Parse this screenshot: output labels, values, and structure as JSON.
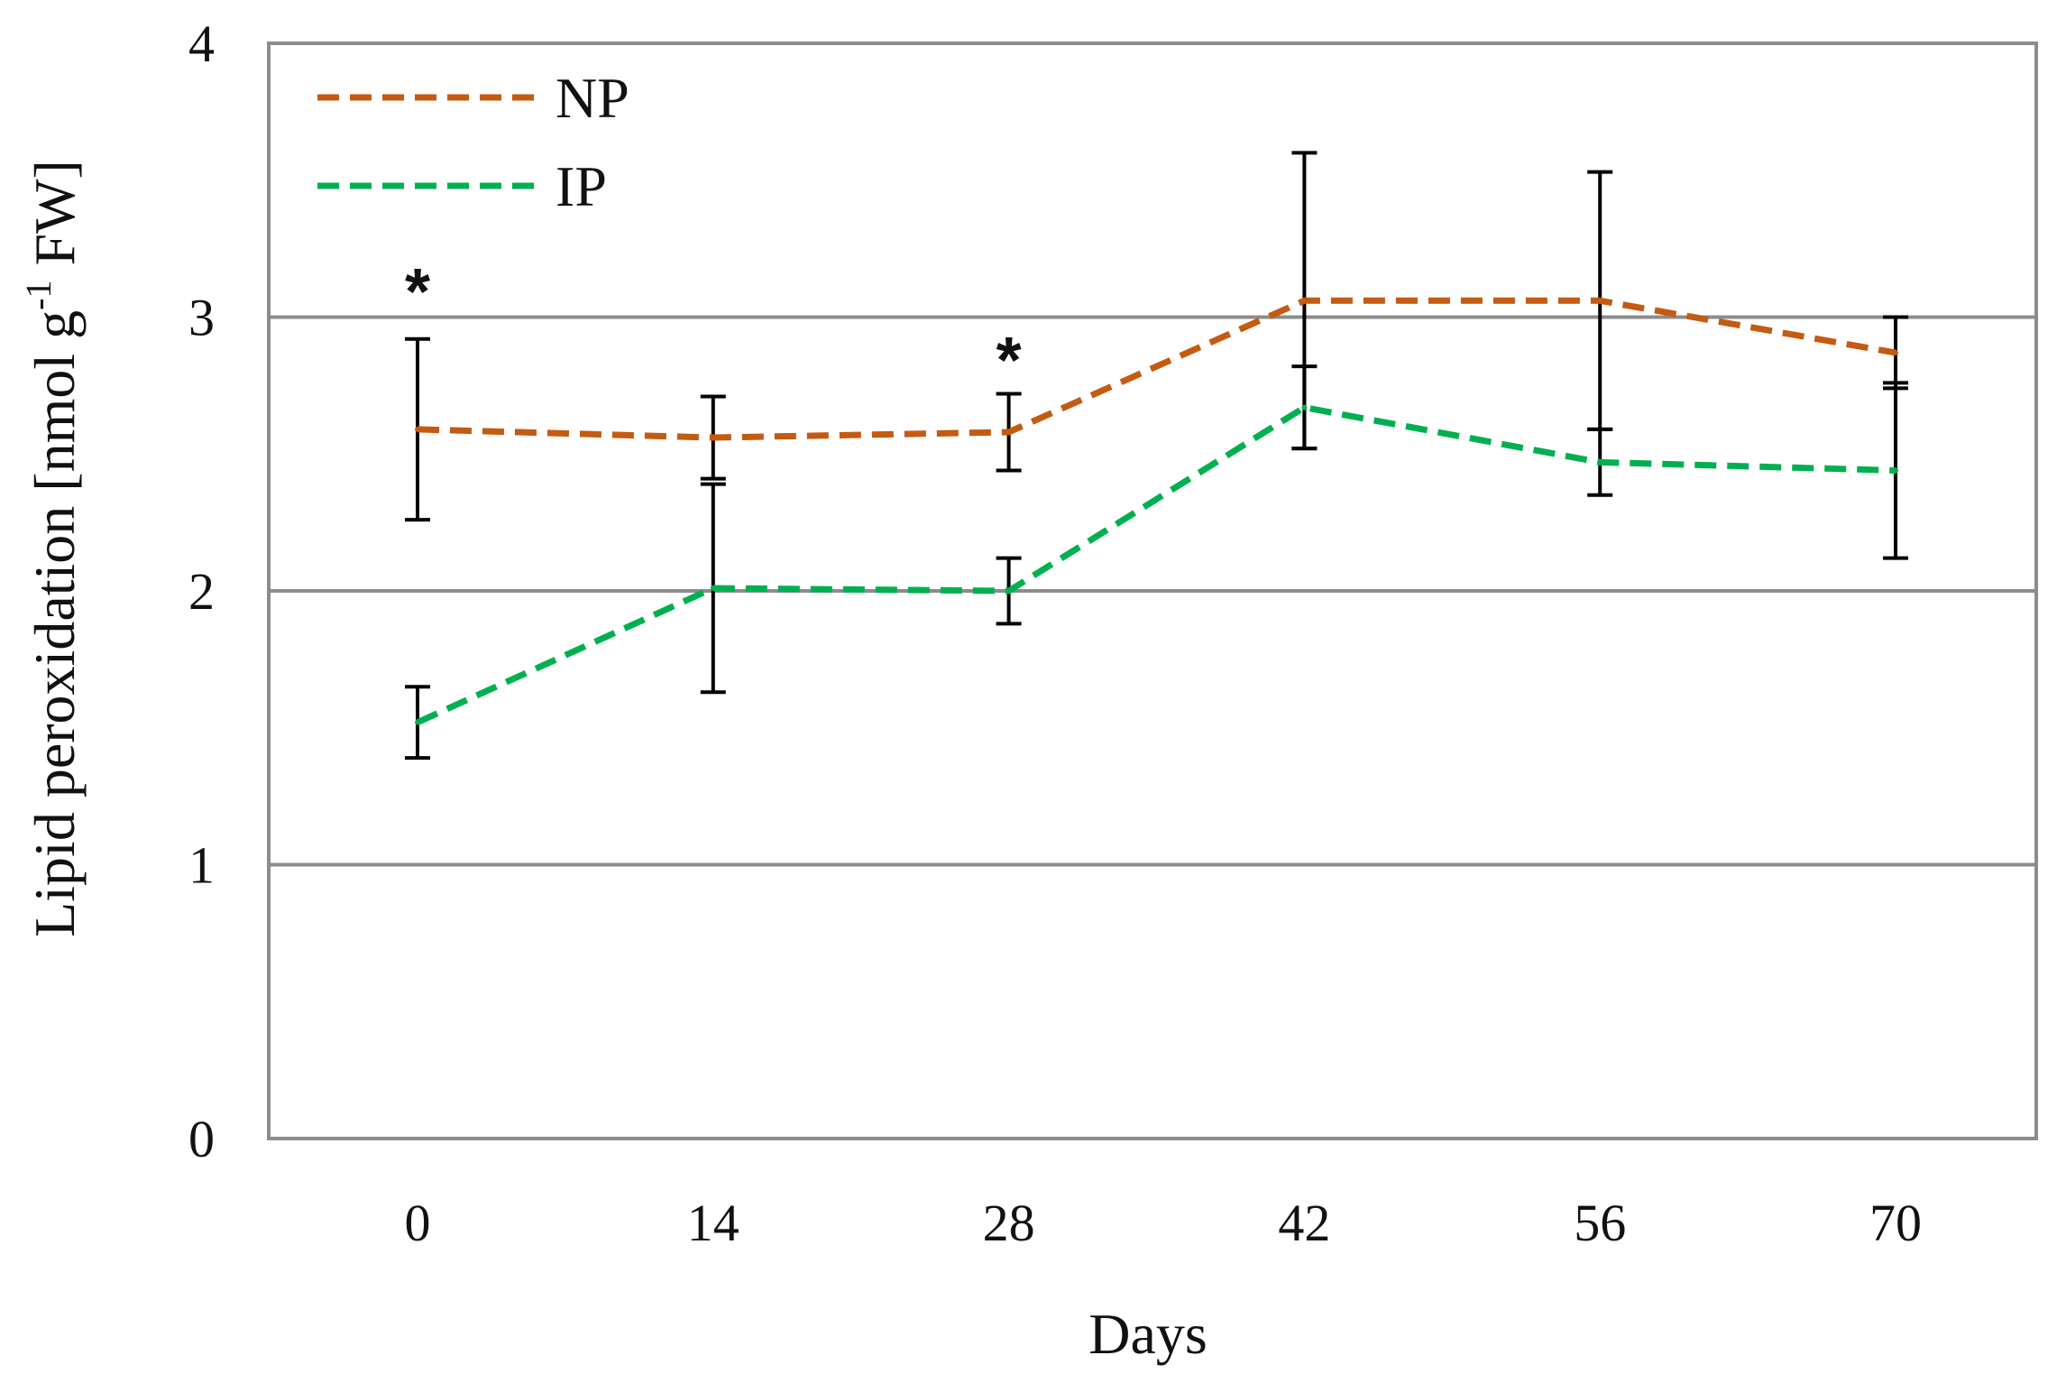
{
  "chart_data": {
    "type": "line",
    "title": "",
    "xlabel": "Days",
    "ylabel": {
      "main": "Lipid peroxidation [nmol g",
      "superscript": "-1",
      "tail": " FW]"
    },
    "x": [
      0,
      14,
      28,
      42,
      56,
      70
    ],
    "categories": [
      "0",
      "14",
      "28",
      "42",
      "56",
      "70"
    ],
    "ylim": [
      0,
      4
    ],
    "yticks": [
      "0",
      "1",
      "2",
      "3",
      "4"
    ],
    "grid": true,
    "legend_position": "top-left",
    "series": [
      {
        "name": "NP",
        "color": "#c55a11",
        "style": "dashed",
        "values": [
          2.59,
          2.56,
          2.58,
          3.06,
          3.06,
          2.87
        ],
        "errors": [
          0.33,
          0.15,
          0.14,
          0.54,
          0.47,
          0.13
        ]
      },
      {
        "name": "IP",
        "color": "#00b050",
        "style": "dashed",
        "values": [
          1.52,
          2.01,
          2.0,
          2.67,
          2.47,
          2.44
        ],
        "errors": [
          0.13,
          0.38,
          0.12,
          0.15,
          0.12,
          0.32
        ]
      }
    ],
    "annotations": [
      {
        "text": "*",
        "x": 0,
        "y": 3.13
      },
      {
        "text": "*",
        "x": 28,
        "y": 2.88
      }
    ],
    "colors": {
      "gridline": "#8c8c8c",
      "errorbar": "#000000"
    }
  }
}
